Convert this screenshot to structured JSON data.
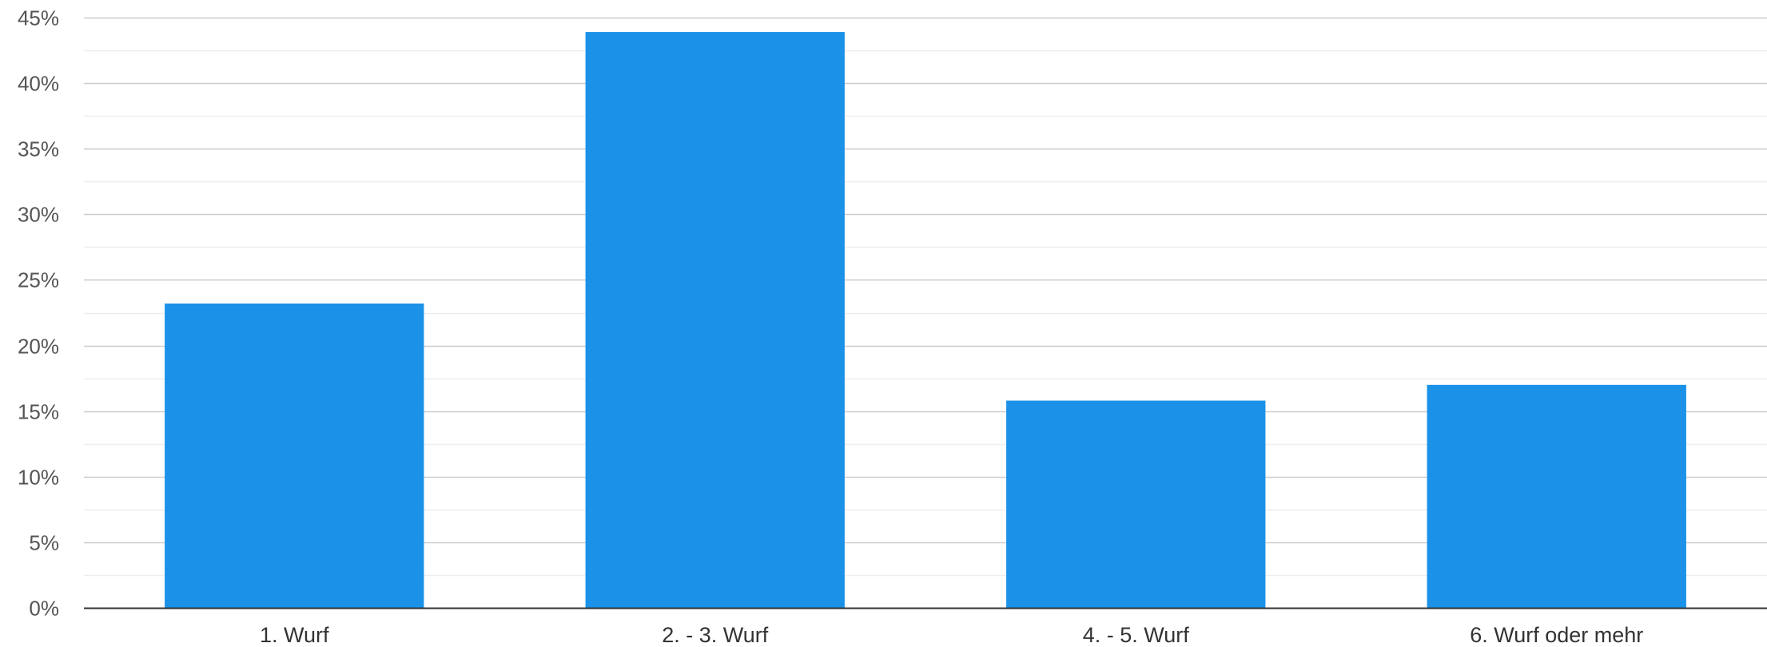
{
  "chart_data": {
    "type": "bar",
    "title": "",
    "xlabel": "",
    "ylabel": "",
    "categories": [
      "1. Wurf",
      "2. - 3. Wurf",
      "4. - 5. Wurf",
      "6. Wurf oder mehr"
    ],
    "values": [
      23.2,
      43.9,
      15.8,
      17.0
    ],
    "ylim": [
      0,
      45
    ],
    "yticks": [
      0,
      5,
      10,
      15,
      20,
      25,
      30,
      35,
      40,
      45
    ],
    "ytick_labels": [
      "0%",
      "5%",
      "10%",
      "15%",
      "20%",
      "25%",
      "30%",
      "35%",
      "40%",
      "45%"
    ],
    "grid": true,
    "minor_grid": true,
    "legend": "none",
    "colors": {
      "bar": "#1b92e8",
      "grid_major": "#cccccc",
      "grid_minor": "#eeeeee",
      "axis": "#333333"
    }
  }
}
